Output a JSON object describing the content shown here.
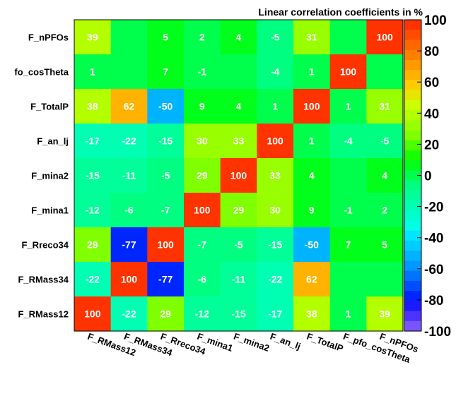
{
  "chart_data": {
    "type": "heatmap",
    "title": "Linear correlation coefficients in %",
    "variables": [
      "F_RMass12",
      "F_RMass34",
      "F_Rreco34",
      "F_mina1",
      "F_mina2",
      "F_an_lj",
      "F_TotalP",
      "F_pfo_cosTheta",
      "F_nPFOs"
    ],
    "row_labels": [
      "F_nPFOs",
      "fo_cosTheta",
      "F_TotalP",
      "F_an_lj",
      "F_mina2",
      "F_mina1",
      "F_Rreco34",
      "F_RMass34",
      "F_RMass12"
    ],
    "matrix": [
      [
        39,
        0,
        5,
        2,
        4,
        -5,
        31,
        0,
        100
      ],
      [
        1,
        0,
        7,
        -1,
        0,
        -4,
        1,
        100,
        0
      ],
      [
        38,
        62,
        -50,
        9,
        4,
        1,
        100,
        1,
        31
      ],
      [
        -17,
        -22,
        -15,
        30,
        33,
        100,
        1,
        -4,
        -5
      ],
      [
        -15,
        -11,
        -5,
        29,
        100,
        33,
        4,
        0,
        4
      ],
      [
        -12,
        -6,
        -7,
        100,
        29,
        30,
        9,
        -1,
        2
      ],
      [
        29,
        -77,
        100,
        -7,
        -5,
        -15,
        -50,
        7,
        5
      ],
      [
        -22,
        100,
        -77,
        -6,
        -11,
        -22,
        62,
        0,
        0
      ],
      [
        100,
        -22,
        29,
        -12,
        -15,
        -17,
        38,
        1,
        39
      ]
    ],
    "cell_labels": [
      [
        "39",
        "",
        "5",
        "2",
        "4",
        "-5",
        "31",
        "",
        "100"
      ],
      [
        "1",
        "",
        "7",
        "-1",
        "",
        "-4",
        "1",
        "100",
        ""
      ],
      [
        "38",
        "62",
        "-50",
        "9",
        "4",
        "1",
        "100",
        "1",
        "31"
      ],
      [
        "-17",
        "-22",
        "-15",
        "30",
        "33",
        "100",
        "1",
        "-4",
        "-5"
      ],
      [
        "-15",
        "-11",
        "-5",
        "29",
        "100",
        "33",
        "4",
        "",
        "4"
      ],
      [
        "-12",
        "-6",
        "-7",
        "100",
        "29",
        "30",
        "9",
        "-1",
        "2"
      ],
      [
        "29",
        "-77",
        "100",
        "-7",
        "-5",
        "-15",
        "-50",
        "7",
        "5"
      ],
      [
        "-22",
        "100",
        "-77",
        "-6",
        "-11",
        "-22",
        "62",
        "",
        ""
      ],
      [
        "100",
        "-22",
        "29",
        "-12",
        "-15",
        "-17",
        "38",
        "1",
        "39"
      ]
    ],
    "zlim": [
      -100,
      100
    ],
    "palette_ticks": [
      "100",
      "80",
      "60",
      "40",
      "20",
      "0",
      "-20",
      "-40",
      "-60",
      "-80",
      "-100"
    ],
    "palette_colors": [
      "#ff3300",
      "#ff4d00",
      "#ff6600",
      "#ff8000",
      "#ff9900",
      "#ffb300",
      "#ffcc00",
      "#e6e600",
      "#ccff00",
      "#b3ff00",
      "#99ff00",
      "#80ff00",
      "#4dff00",
      "#1aff00",
      "#00ff1a",
      "#00ff4d",
      "#00ff80",
      "#00ff99",
      "#00ffb3",
      "#00ffcc",
      "#00ffe6",
      "#00e6ff",
      "#00ccff",
      "#00b3ff",
      "#0099ff",
      "#0073ff",
      "#004dff",
      "#0026ff",
      "#1a1aff",
      "#4d33ff",
      "#7a55ff"
    ],
    "grid": false,
    "legend_placement": "right"
  }
}
